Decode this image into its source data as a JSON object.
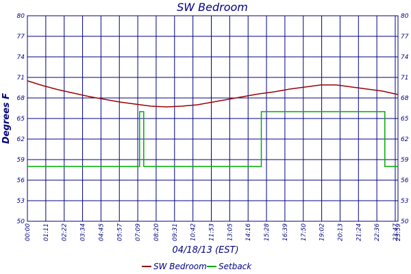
{
  "chart_data": {
    "type": "line",
    "title": "SW Bedroom",
    "xlabel": "04/18/13 (EST)",
    "ylabel": "Degrees F",
    "ylim": [
      50,
      80
    ],
    "yticks": [
      50,
      53,
      56,
      59,
      62,
      65,
      68,
      71,
      74,
      77,
      80
    ],
    "xlim": [
      0,
      1440
    ],
    "xtick_labels": [
      "00:00",
      "01:11",
      "02:22",
      "03:34",
      "04:45",
      "05:57",
      "07:09",
      "08:20",
      "09:31",
      "10:42",
      "11:53",
      "13:05",
      "14:16",
      "15:28",
      "16:39",
      "17:50",
      "19:02",
      "20:13",
      "21:24",
      "22:36",
      "23:47",
      "23:59"
    ],
    "grid": true,
    "legend_position": "bottom",
    "series": [
      {
        "name": "SW Bedroom",
        "color": "#990000",
        "x": [
          0,
          60,
          120,
          180,
          240,
          300,
          360,
          420,
          480,
          540,
          600,
          660,
          720,
          780,
          840,
          900,
          960,
          1020,
          1080,
          1140,
          1200,
          1260,
          1320,
          1380,
          1440
        ],
        "values": [
          70.5,
          69.8,
          69.2,
          68.7,
          68.2,
          67.8,
          67.4,
          67.1,
          66.8,
          66.7,
          66.8,
          67.0,
          67.4,
          67.8,
          68.2,
          68.6,
          68.9,
          69.3,
          69.6,
          69.9,
          69.9,
          69.6,
          69.3,
          69.0,
          68.5
        ]
      },
      {
        "name": "Setback",
        "color": "#00aa00",
        "x": [
          0,
          436,
          436,
          452,
          452,
          909,
          909,
          1389,
          1389,
          1440
        ],
        "values": [
          58,
          58,
          66,
          66,
          58,
          58,
          66,
          66,
          58,
          58
        ]
      }
    ]
  }
}
